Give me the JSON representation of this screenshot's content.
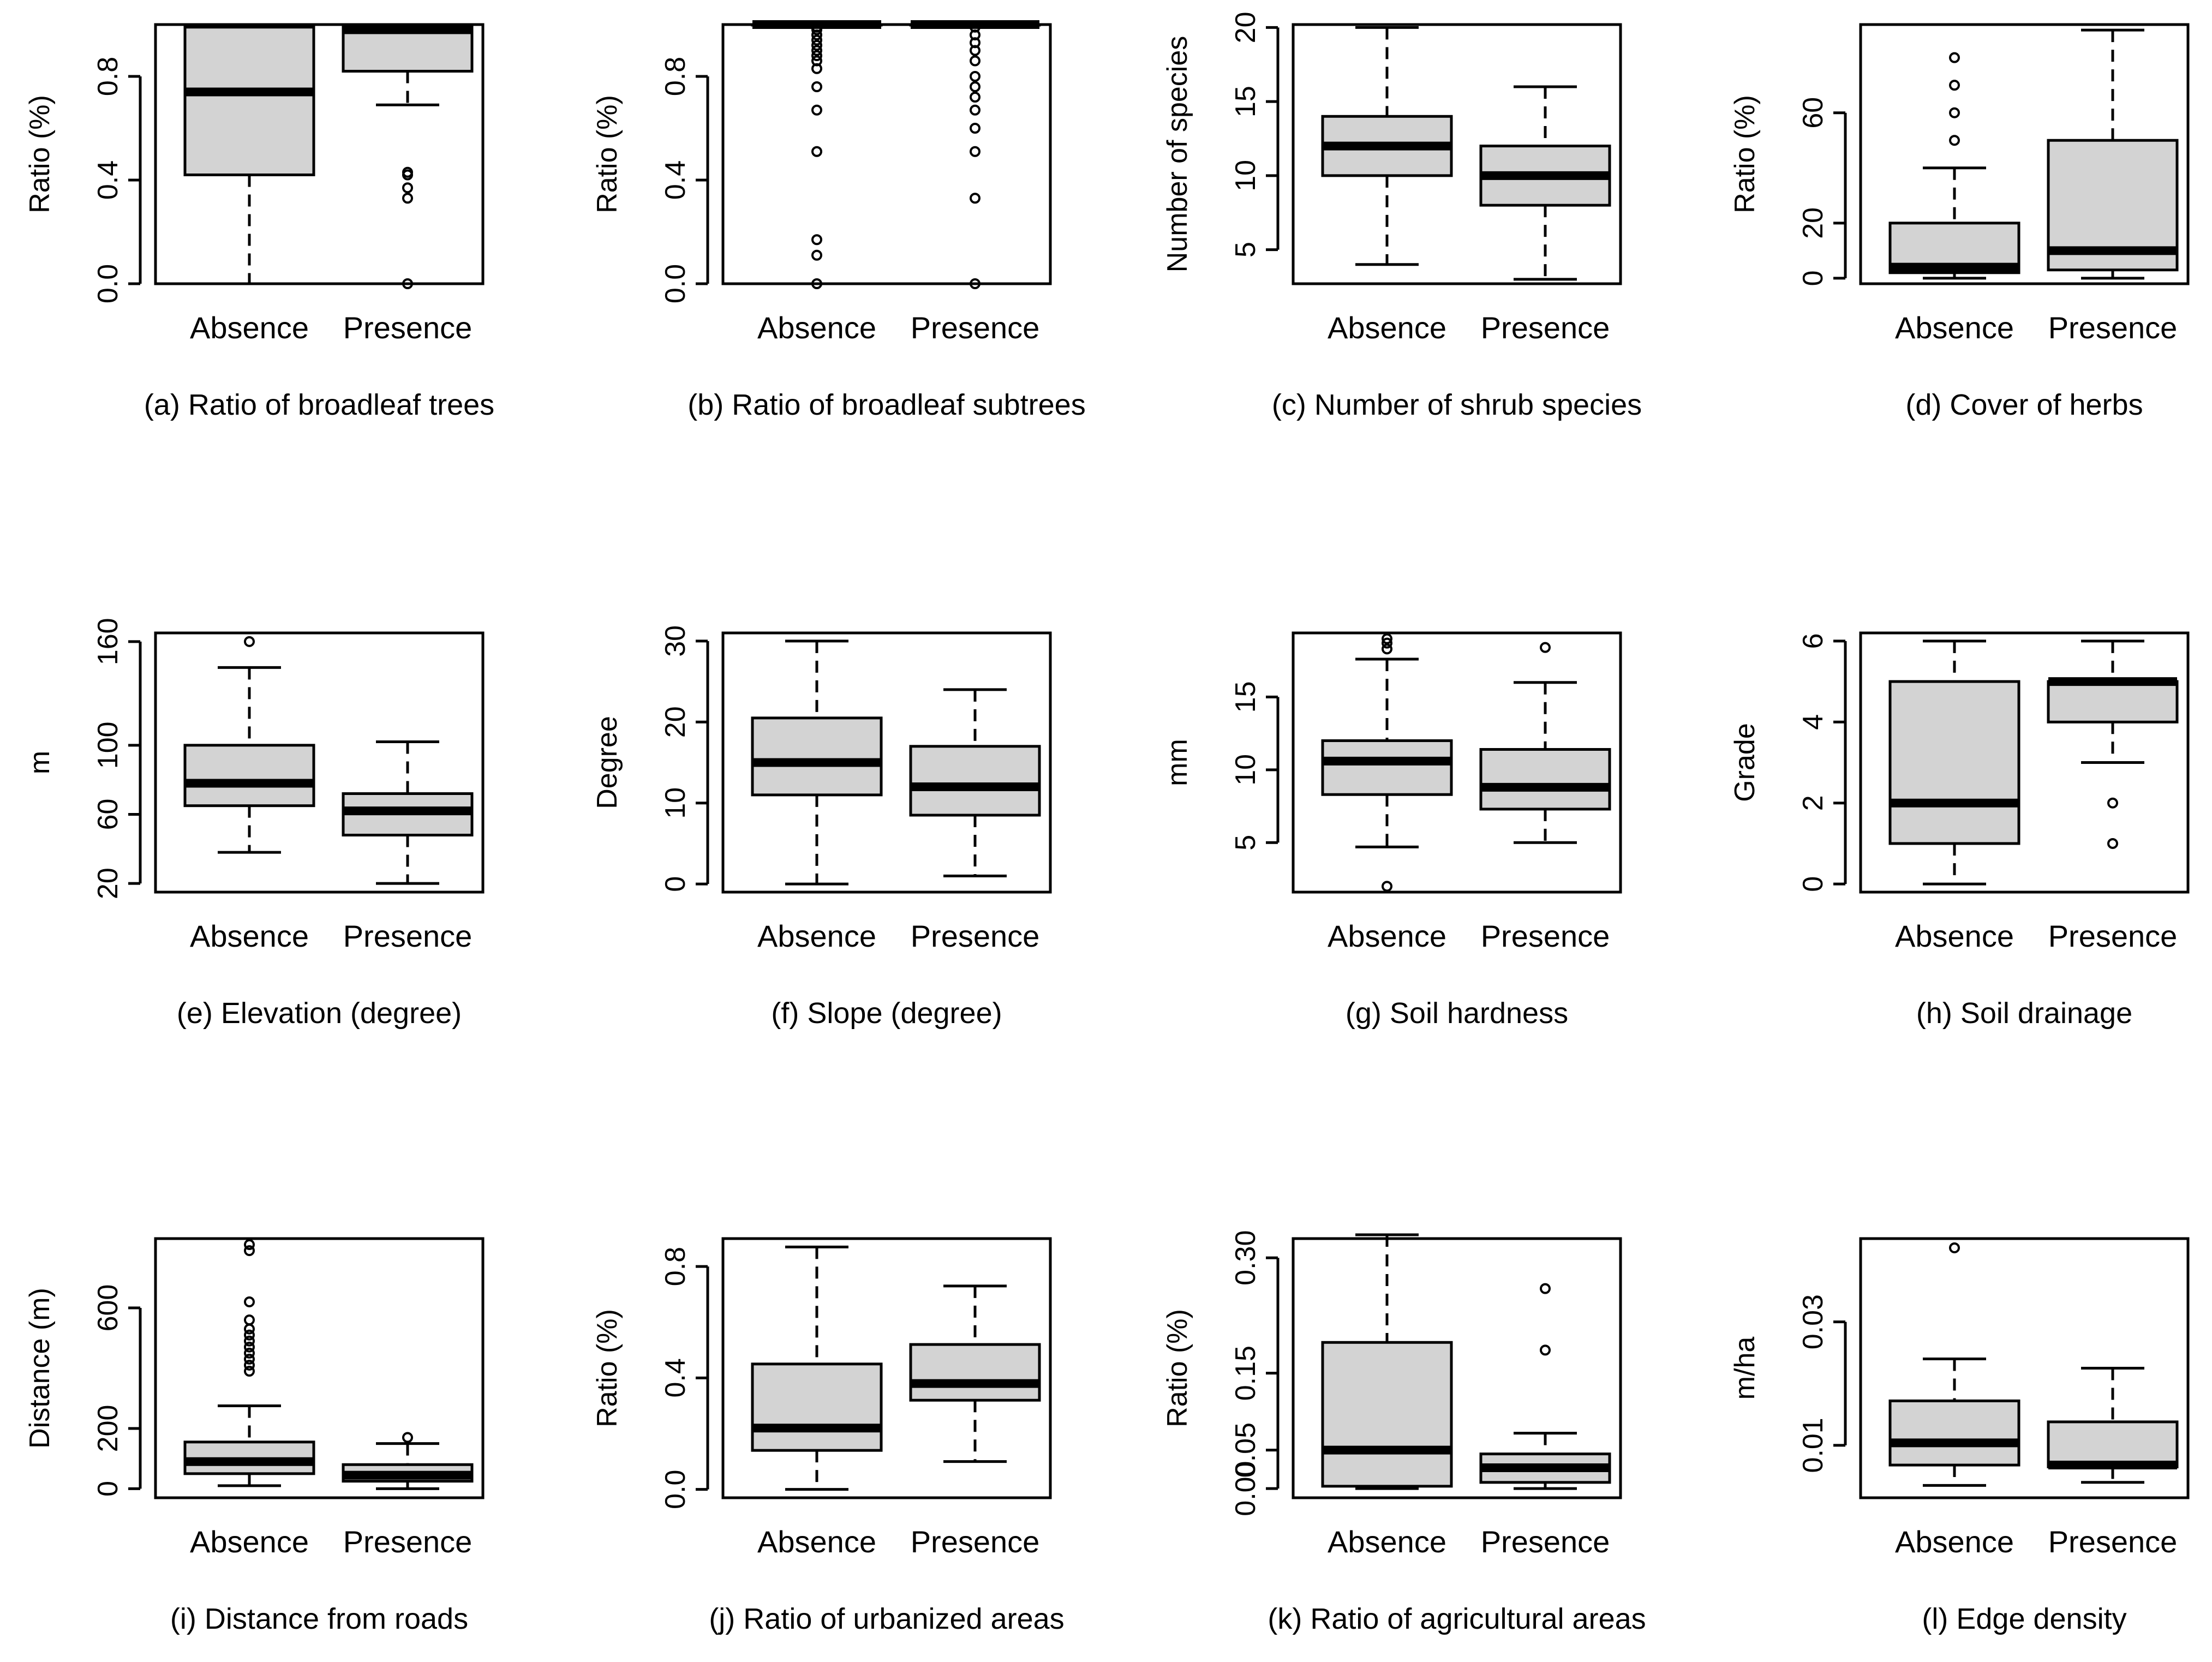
{
  "figure": {
    "description": "Twelve boxplots comparing Absence vs Presence"
  },
  "chart_data": [
    {
      "type": "boxplot",
      "panel_label": "(a) Ratio of broadleaf trees",
      "ylabel": "Ratio (%)",
      "categories": [
        "Absence",
        "Presence"
      ],
      "ylim": [
        0,
        1.0
      ],
      "yticks": [
        0,
        0.4,
        0.8
      ],
      "ytick_labels": [
        "0.0",
        "0.4",
        "0.8"
      ],
      "boxes": [
        {
          "name": "Absence",
          "whislo": 0.0,
          "q1": 0.42,
          "med": 0.74,
          "q3": 0.99,
          "whishi": 0.99,
          "outliers": []
        },
        {
          "name": "Presence",
          "whislo": 0.69,
          "q1": 0.82,
          "med": 0.98,
          "q3": 0.99,
          "whishi": 0.99,
          "outliers": [
            0.0,
            0.33,
            0.37,
            0.42,
            0.43
          ]
        }
      ]
    },
    {
      "type": "boxplot",
      "panel_label": "(b) Ratio of broadleaf subtrees",
      "ylabel": "Ratio (%)",
      "categories": [
        "Absence",
        "Presence"
      ],
      "ylim": [
        0,
        1.0
      ],
      "yticks": [
        0,
        0.4,
        0.8
      ],
      "ytick_labels": [
        "0.0",
        "0.4",
        "0.8"
      ],
      "boxes": [
        {
          "name": "Absence",
          "whislo": 1.0,
          "q1": 1.0,
          "med": 1.0,
          "q3": 1.0,
          "whishi": 1.0,
          "outliers": [
            0.0,
            0.11,
            0.17,
            0.51,
            0.67,
            0.76,
            0.83,
            0.86,
            0.88,
            0.9,
            0.92,
            0.94,
            0.96,
            0.98,
            0.99
          ]
        },
        {
          "name": "Presence",
          "whislo": 1.0,
          "q1": 1.0,
          "med": 1.0,
          "q3": 1.0,
          "whishi": 1.0,
          "outliers": [
            0.0,
            0.33,
            0.51,
            0.6,
            0.67,
            0.72,
            0.76,
            0.8,
            0.86,
            0.9,
            0.93,
            0.96,
            0.99
          ]
        }
      ]
    },
    {
      "type": "boxplot",
      "panel_label": "(c) Number of shrub species",
      "ylabel": "Number of species",
      "categories": [
        "Absence",
        "Presence"
      ],
      "ylim": [
        2.7,
        20.2
      ],
      "yticks": [
        5,
        10,
        15,
        20
      ],
      "ytick_labels": [
        "5",
        "10",
        "15",
        "20"
      ],
      "boxes": [
        {
          "name": "Absence",
          "whislo": 4,
          "q1": 10,
          "med": 12,
          "q3": 14,
          "whishi": 20,
          "outliers": []
        },
        {
          "name": "Presence",
          "whislo": 3,
          "q1": 8,
          "med": 10,
          "q3": 12,
          "whishi": 16,
          "outliers": []
        }
      ]
    },
    {
      "type": "boxplot",
      "panel_label": "(d) Cover of herbs",
      "ylabel": "Ratio (%)",
      "categories": [
        "Absence",
        "Presence"
      ],
      "ylim": [
        -2,
        92
      ],
      "yticks": [
        0,
        20,
        60
      ],
      "ytick_labels": [
        "0",
        "20",
        "60"
      ],
      "boxes": [
        {
          "name": "Absence",
          "whislo": 0,
          "q1": 2,
          "med": 4,
          "q3": 20,
          "whishi": 40,
          "outliers": [
            50,
            60,
            70,
            80
          ]
        },
        {
          "name": "Presence",
          "whislo": 0,
          "q1": 3,
          "med": 10,
          "q3": 50,
          "whishi": 90,
          "outliers": []
        }
      ]
    },
    {
      "type": "boxplot",
      "panel_label": "(e) Elevation (degree)",
      "ylabel": "m",
      "categories": [
        "Absence",
        "Presence"
      ],
      "ylim": [
        15,
        165
      ],
      "yticks": [
        20,
        60,
        100,
        160
      ],
      "ytick_labels": [
        "20",
        "60",
        "100",
        "160"
      ],
      "boxes": [
        {
          "name": "Absence",
          "whislo": 38,
          "q1": 65,
          "med": 78,
          "q3": 100,
          "whishi": 145,
          "outliers": [
            160
          ]
        },
        {
          "name": "Presence",
          "whislo": 20,
          "q1": 48,
          "med": 62,
          "q3": 72,
          "whishi": 102,
          "outliers": []
        }
      ]
    },
    {
      "type": "boxplot",
      "panel_label": "(f) Slope (degree)",
      "ylabel": "Degree",
      "categories": [
        "Absence",
        "Presence"
      ],
      "ylim": [
        -1,
        31
      ],
      "yticks": [
        0,
        10,
        20,
        30
      ],
      "ytick_labels": [
        "0",
        "10",
        "20",
        "30"
      ],
      "boxes": [
        {
          "name": "Absence",
          "whislo": 0,
          "q1": 11,
          "med": 15,
          "q3": 20.5,
          "whishi": 30,
          "outliers": []
        },
        {
          "name": "Presence",
          "whislo": 1,
          "q1": 8.5,
          "med": 12,
          "q3": 17,
          "whishi": 24,
          "outliers": []
        }
      ]
    },
    {
      "type": "boxplot",
      "panel_label": "(g) Soil hardness",
      "ylabel": "mm",
      "categories": [
        "Absence",
        "Presence"
      ],
      "ylim": [
        1.6,
        19.4
      ],
      "yticks": [
        5,
        10,
        15
      ],
      "ytick_labels": [
        "5",
        "10",
        "15"
      ],
      "boxes": [
        {
          "name": "Absence",
          "whislo": 4.7,
          "q1": 8.3,
          "med": 10.6,
          "q3": 12,
          "whishi": 17.6,
          "outliers": [
            2.0,
            18.3,
            18.7,
            19.0
          ]
        },
        {
          "name": "Presence",
          "whislo": 5.0,
          "q1": 7.3,
          "med": 8.8,
          "q3": 11.4,
          "whishi": 16.0,
          "outliers": [
            18.4
          ]
        }
      ]
    },
    {
      "type": "boxplot",
      "panel_label": "(h) Soil drainage",
      "ylabel": "Grade",
      "categories": [
        "Absence",
        "Presence"
      ],
      "ylim": [
        -0.2,
        6.2
      ],
      "yticks": [
        0,
        2,
        4,
        6
      ],
      "ytick_labels": [
        "0",
        "2",
        "4",
        "6"
      ],
      "boxes": [
        {
          "name": "Absence",
          "whislo": 0,
          "q1": 1,
          "med": 2,
          "q3": 5,
          "whishi": 6,
          "outliers": []
        },
        {
          "name": "Presence",
          "whislo": 3,
          "q1": 4,
          "med": 5,
          "q3": 5,
          "whishi": 6,
          "outliers": [
            1,
            2
          ]
        }
      ]
    },
    {
      "type": "boxplot",
      "panel_label": "(i) Distance from roads",
      "ylabel": "Distance (m)",
      "categories": [
        "Absence",
        "Presence"
      ],
      "ylim": [
        -30,
        830
      ],
      "yticks": [
        0,
        200,
        600
      ],
      "ytick_labels": [
        "0",
        "200",
        "600"
      ],
      "boxes": [
        {
          "name": "Absence",
          "whislo": 10,
          "q1": 50,
          "med": 90,
          "q3": 155,
          "whishi": 275,
          "outliers": [
            390,
            410,
            430,
            450,
            470,
            490,
            510,
            530,
            560,
            620,
            790,
            810
          ]
        },
        {
          "name": "Presence",
          "whislo": 0,
          "q1": 25,
          "med": 45,
          "q3": 80,
          "whishi": 150,
          "outliers": [
            170
          ]
        }
      ]
    },
    {
      "type": "boxplot",
      "panel_label": "(j) Ratio of urbanized areas",
      "ylabel": "Ratio (%)",
      "categories": [
        "Absence",
        "Presence"
      ],
      "ylim": [
        -0.03,
        0.9
      ],
      "yticks": [
        0,
        0.4,
        0.8
      ],
      "ytick_labels": [
        "0.0",
        "0.4",
        "0.8"
      ],
      "boxes": [
        {
          "name": "Absence",
          "whislo": 0.0,
          "q1": 0.14,
          "med": 0.22,
          "q3": 0.45,
          "whishi": 0.87,
          "outliers": []
        },
        {
          "name": "Presence",
          "whislo": 0.1,
          "q1": 0.32,
          "med": 0.38,
          "q3": 0.52,
          "whishi": 0.73,
          "outliers": []
        }
      ]
    },
    {
      "type": "boxplot",
      "panel_label": "(k) Ratio of agricultural areas",
      "ylabel": "Ratio (%)",
      "categories": [
        "Absence",
        "Presence"
      ],
      "ylim": [
        -0.012,
        0.325
      ],
      "yticks": [
        0,
        0.05,
        0.15,
        0.3
      ],
      "ytick_labels": [
        "0.00",
        "0.05",
        "0.15",
        "0.30"
      ],
      "boxes": [
        {
          "name": "Absence",
          "whislo": 0.0,
          "q1": 0.003,
          "med": 0.05,
          "q3": 0.19,
          "whishi": 0.33,
          "outliers": []
        },
        {
          "name": "Presence",
          "whislo": 0.0,
          "q1": 0.008,
          "med": 0.027,
          "q3": 0.045,
          "whishi": 0.072,
          "outliers": [
            0.18,
            0.26
          ]
        }
      ]
    },
    {
      "type": "boxplot",
      "panel_label": "(l) Edge density",
      "ylabel": "m/ha",
      "categories": [
        "Absence",
        "Presence"
      ],
      "ylim": [
        0.0015,
        0.0435
      ],
      "yticks": [
        0.01,
        0.03
      ],
      "ytick_labels": [
        "0.01",
        "0.03"
      ],
      "boxes": [
        {
          "name": "Absence",
          "whislo": 0.0035,
          "q1": 0.0068,
          "med": 0.0104,
          "q3": 0.0172,
          "whishi": 0.024,
          "outliers": [
            0.042
          ]
        },
        {
          "name": "Presence",
          "whislo": 0.004,
          "q1": 0.0065,
          "med": 0.0068,
          "q3": 0.0138,
          "whishi": 0.0225,
          "outliers": []
        }
      ]
    }
  ]
}
